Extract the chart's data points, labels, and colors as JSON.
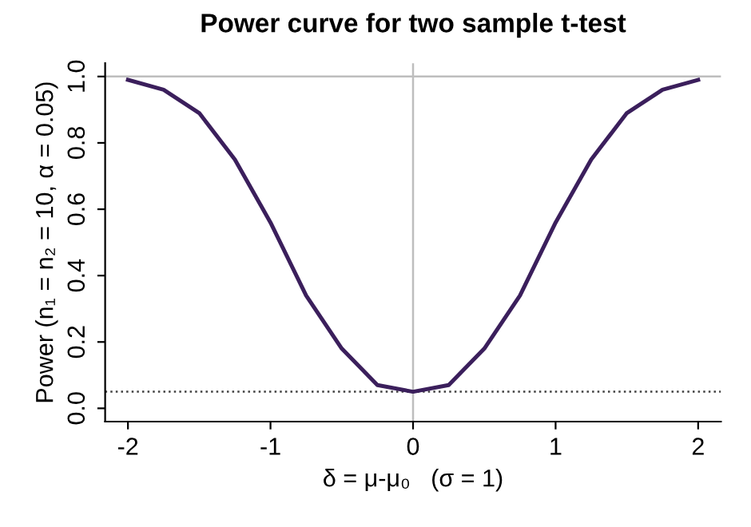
{
  "chart_data": {
    "type": "line",
    "title": "Power curve for two sample t-test",
    "xlabel": "δ = μ-μ₀   (σ = 1)",
    "ylabel": "Power (n₁ = n₂ = 10, α = 0.05)",
    "x": [
      -2,
      -1.75,
      -1.5,
      -1.25,
      -1,
      -0.75,
      -0.5,
      -0.25,
      0,
      0.25,
      0.5,
      0.75,
      1,
      1.25,
      1.5,
      1.75,
      2
    ],
    "series": [
      {
        "color": "#3b1f5c",
        "values": [
          0.99,
          0.96,
          0.89,
          0.75,
          0.56,
          0.34,
          0.18,
          0.07,
          0.05,
          0.07,
          0.18,
          0.34,
          0.56,
          0.75,
          0.89,
          0.96,
          0.99
        ]
      }
    ],
    "xlim": [
      -2.16,
      2.16
    ],
    "ylim": [
      -0.04,
      1.04
    ],
    "xticks": [
      -2,
      -1,
      0,
      1,
      2
    ],
    "yticks": [
      {
        "value": 0,
        "label": "0.0"
      },
      0.2,
      0.4,
      0.6,
      0.8,
      {
        "value": 1,
        "label": "1.0"
      }
    ],
    "ref_lines": [
      {
        "axis": "y",
        "value": 1,
        "color": "#bebebe",
        "line_style": "solid"
      },
      {
        "axis": "x",
        "value": 0,
        "color": "#bebebe",
        "line_style": "solid"
      },
      {
        "axis": "y",
        "value": 0.05,
        "color": "#404040",
        "line_style": "dotted"
      }
    ],
    "grid": false,
    "legend": false,
    "marker": "none",
    "line_style": "solid"
  }
}
